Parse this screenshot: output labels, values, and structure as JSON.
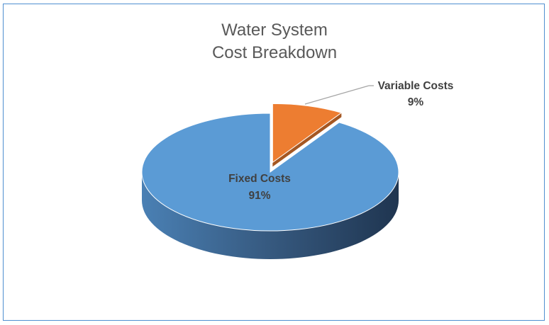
{
  "chart_data": {
    "type": "pie",
    "style": "3d-exploded",
    "title_lines": [
      "Water System",
      "Cost Breakdown"
    ],
    "start_angle": "top, clockwise",
    "slices": [
      {
        "label": "Variable Costs",
        "value": 9,
        "value_label": "9%",
        "color": "#ed7d31",
        "exploded": true
      },
      {
        "label": "Fixed Costs",
        "value": 91,
        "value_label": "91%",
        "color": "#5b9bd5",
        "exploded": false
      }
    ],
    "legend": "none",
    "border_color": "#4f8fd0"
  }
}
